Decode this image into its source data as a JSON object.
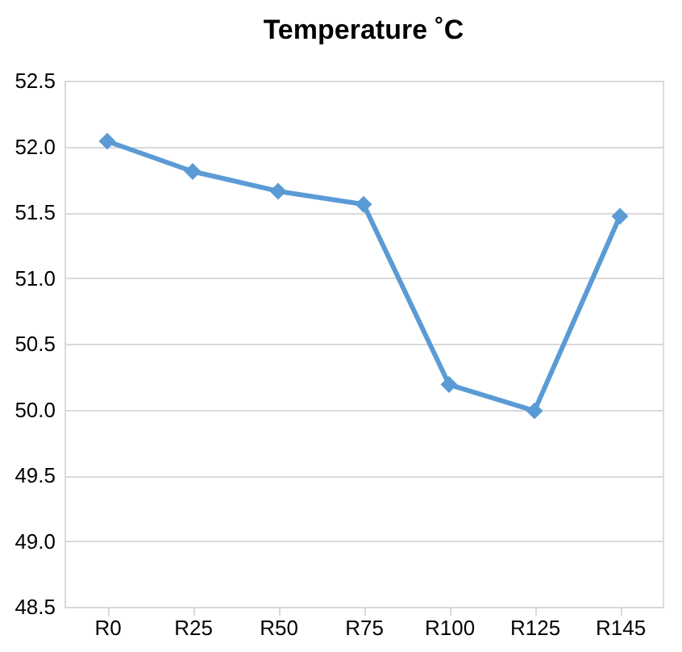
{
  "chart_data": {
    "type": "line",
    "title": "Temperature ˚C",
    "categories": [
      "R0",
      "R25",
      "R50",
      "R75",
      "R100",
      "R125",
      "R145"
    ],
    "series": [
      {
        "color": "#5b9bd5",
        "values": [
          52.04,
          51.81,
          51.66,
          51.56,
          50.19,
          49.99,
          51.47
        ]
      }
    ],
    "ylim": [
      48.5,
      52.5
    ],
    "yticks": [
      {
        "value": 48.5,
        "label": "48.5"
      },
      {
        "value": 49,
        "label": "49.0"
      },
      {
        "value": 49.5,
        "label": "49.5"
      },
      {
        "value": 50,
        "label": "50.0"
      },
      {
        "value": 50.5,
        "label": "50.5"
      },
      {
        "value": 51,
        "label": "51.0"
      },
      {
        "value": 51.5,
        "label": "51.5"
      },
      {
        "value": 52,
        "label": "52.0"
      },
      {
        "value": 52.5,
        "label": "52.5"
      }
    ],
    "grid": "y",
    "marker": "diamond",
    "line_style": "solid"
  }
}
